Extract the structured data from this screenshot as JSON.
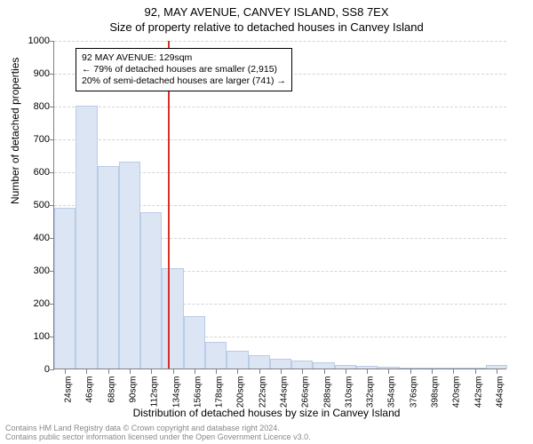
{
  "header": {
    "address": "92, MAY AVENUE, CANVEY ISLAND, SS8 7EX",
    "subtitle": "Size of property relative to detached houses in Canvey Island"
  },
  "chart": {
    "type": "histogram",
    "ylabel": "Number of detached properties",
    "xlabel": "Distribution of detached houses by size in Canvey Island",
    "ylim": [
      0,
      1000
    ],
    "ytick_step": 100,
    "yticks": [
      0,
      100,
      200,
      300,
      400,
      500,
      600,
      700,
      800,
      900,
      1000
    ],
    "bar_fill": "#dbe5f4",
    "bar_stroke": "#b9cce8",
    "grid_color": "#d4d4d4",
    "axis_color": "#808080",
    "background_color": "#ffffff",
    "ref_line_color": "#d73027",
    "ref_line_width": 2,
    "ref_value_sqm": 129,
    "annotation": {
      "line1": "92 MAY AVENUE: 129sqm",
      "line2": "← 79% of detached houses are smaller (2,915)",
      "line3": "20% of semi-detached houses are larger (741) →"
    },
    "categories": [
      "24sqm",
      "46sqm",
      "68sqm",
      "90sqm",
      "112sqm",
      "134sqm",
      "156sqm",
      "178sqm",
      "200sqm",
      "222sqm",
      "244sqm",
      "266sqm",
      "288sqm",
      "310sqm",
      "332sqm",
      "354sqm",
      "376sqm",
      "398sqm",
      "420sqm",
      "442sqm",
      "464sqm"
    ],
    "values": [
      490,
      800,
      615,
      630,
      475,
      305,
      160,
      80,
      55,
      40,
      30,
      25,
      20,
      12,
      8,
      5,
      4,
      3,
      3,
      2,
      10
    ],
    "bin_left_edges_sqm": [
      13,
      35,
      57,
      79,
      101,
      123,
      145,
      167,
      189,
      211,
      233,
      255,
      277,
      299,
      321,
      343,
      365,
      387,
      409,
      431,
      453
    ],
    "bin_width_sqm": 22,
    "x_range_sqm": [
      13,
      475
    ],
    "label_fontsize": 12,
    "tick_fontsize": 10,
    "title_fontsize": 13
  },
  "footer": {
    "line1": "Contains HM Land Registry data © Crown copyright and database right 2024.",
    "line2": "Contains public sector information licensed under the Open Government Licence v3.0."
  }
}
